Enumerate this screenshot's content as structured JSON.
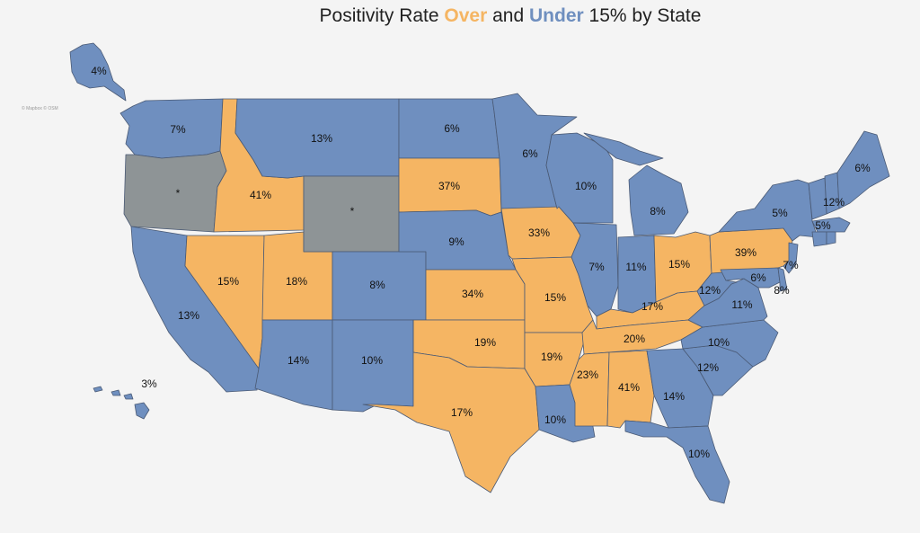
{
  "title": {
    "prefix": "Positivity Rate ",
    "over": "Over",
    "middle": " and ",
    "under": "Under",
    "suffix": " 15% by State"
  },
  "attribution": "© Mapbox © OSM",
  "colors": {
    "over": "#f5b563",
    "under": "#6f8fbf",
    "no_data": "#8e9496",
    "background": "#f4f4f4"
  },
  "states": [
    {
      "id": "AK",
      "label": "4%",
      "category": "under"
    },
    {
      "id": "HI",
      "label": "3%",
      "category": "under"
    },
    {
      "id": "WA",
      "label": "7%",
      "category": "under"
    },
    {
      "id": "OR",
      "label": "*",
      "category": "no_data"
    },
    {
      "id": "CA",
      "label": "13%",
      "category": "under"
    },
    {
      "id": "ID",
      "label": "41%",
      "category": "over"
    },
    {
      "id": "NV",
      "label": "15%",
      "category": "over"
    },
    {
      "id": "UT",
      "label": "18%",
      "category": "over"
    },
    {
      "id": "AZ",
      "label": "14%",
      "category": "under"
    },
    {
      "id": "MT",
      "label": "13%",
      "category": "under"
    },
    {
      "id": "WY",
      "label": "*",
      "category": "no_data"
    },
    {
      "id": "CO",
      "label": "8%",
      "category": "under"
    },
    {
      "id": "NM",
      "label": "10%",
      "category": "under"
    },
    {
      "id": "ND",
      "label": "6%",
      "category": "under"
    },
    {
      "id": "SD",
      "label": "37%",
      "category": "over"
    },
    {
      "id": "NE",
      "label": "9%",
      "category": "under"
    },
    {
      "id": "KS",
      "label": "34%",
      "category": "over"
    },
    {
      "id": "OK",
      "label": "19%",
      "category": "over"
    },
    {
      "id": "TX",
      "label": "17%",
      "category": "over"
    },
    {
      "id": "MN",
      "label": "6%",
      "category": "under"
    },
    {
      "id": "IA",
      "label": "33%",
      "category": "over"
    },
    {
      "id": "MO",
      "label": "15%",
      "category": "over"
    },
    {
      "id": "AR",
      "label": "19%",
      "category": "over"
    },
    {
      "id": "LA",
      "label": "10%",
      "category": "under"
    },
    {
      "id": "WI",
      "label": "10%",
      "category": "under"
    },
    {
      "id": "IL",
      "label": "7%",
      "category": "under"
    },
    {
      "id": "MI",
      "label": "8%",
      "category": "under"
    },
    {
      "id": "IN",
      "label": "11%",
      "category": "under"
    },
    {
      "id": "OH",
      "label": "15%",
      "category": "over"
    },
    {
      "id": "KY",
      "label": "17%",
      "category": "over"
    },
    {
      "id": "TN",
      "label": "20%",
      "category": "over"
    },
    {
      "id": "MS",
      "label": "23%",
      "category": "over"
    },
    {
      "id": "AL",
      "label": "41%",
      "category": "over"
    },
    {
      "id": "GA",
      "label": "14%",
      "category": "under"
    },
    {
      "id": "FL",
      "label": "10%",
      "category": "under"
    },
    {
      "id": "SC",
      "label": "12%",
      "category": "under"
    },
    {
      "id": "NC",
      "label": "10%",
      "category": "under"
    },
    {
      "id": "VA",
      "label": "11%",
      "category": "under"
    },
    {
      "id": "WV",
      "label": "12%",
      "category": "under"
    },
    {
      "id": "PA",
      "label": "39%",
      "category": "over"
    },
    {
      "id": "NY",
      "label": "5%",
      "category": "under"
    },
    {
      "id": "MD",
      "label": "6%",
      "category": "under"
    },
    {
      "id": "DE",
      "label": "8%",
      "category": "under"
    },
    {
      "id": "NJ",
      "label": "7%",
      "category": "under"
    },
    {
      "id": "NH",
      "label": "12%",
      "category": "under"
    },
    {
      "id": "MA",
      "label": "5%",
      "category": "under"
    },
    {
      "id": "ME",
      "label": "6%",
      "category": "under"
    },
    {
      "id": "VT",
      "label": "",
      "category": "under"
    },
    {
      "id": "CT",
      "label": "",
      "category": "under"
    },
    {
      "id": "RI",
      "label": "",
      "category": "under"
    }
  ]
}
